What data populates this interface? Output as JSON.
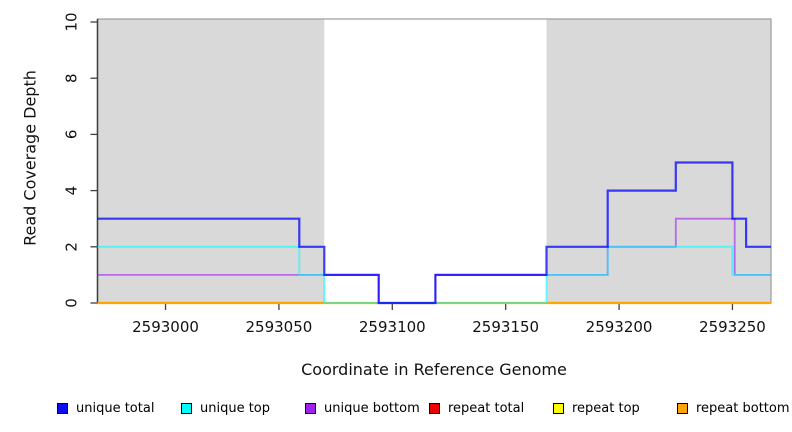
{
  "figure": {
    "title": ""
  },
  "legend": {
    "items": [
      {
        "label": "unique total",
        "color": "#0D0DF2"
      },
      {
        "label": "unique top",
        "color": "#00FFFF"
      },
      {
        "label": "unique bottom",
        "color": "#A020F0"
      },
      {
        "label": "repeat total",
        "color": "#EE0000"
      },
      {
        "label": "repeat top",
        "color": "#FFFF00"
      },
      {
        "label": "repeat bottom",
        "color": "#FFA500"
      }
    ]
  },
  "chart_data": {
    "type": "line",
    "subtype": "step",
    "title": "",
    "xlabel": "Coordinate in Reference Genome",
    "ylabel": "Read Coverage Depth",
    "xlim": [
      2592970,
      2593267
    ],
    "ylim": [
      0,
      10
    ],
    "grid": false,
    "legend_position": "bottom",
    "x_ticks": [
      2593000,
      2593050,
      2593100,
      2593150,
      2593200,
      2593250
    ],
    "y_ticks": [
      0,
      2,
      4,
      6,
      8,
      10
    ],
    "shaded_regions": {
      "color": "#D9D9D9",
      "ranges": [
        [
          2592970,
          2593070
        ],
        [
          2593168,
          2593267
        ]
      ]
    },
    "series": [
      {
        "name": "repeat total",
        "color": "#EE0000",
        "opacity": 1,
        "width": 1.4,
        "steps": [
          [
            2592970,
            0
          ]
        ]
      },
      {
        "name": "repeat top",
        "color": "#FFFF00",
        "opacity": 1,
        "width": 1.4,
        "steps": [
          [
            2592970,
            0
          ]
        ]
      },
      {
        "name": "repeat bottom",
        "color": "#FFA500",
        "opacity": 1,
        "width": 2.2,
        "steps": [
          [
            2592970,
            0
          ]
        ]
      },
      {
        "name": "unique bottom",
        "color": "#A020F0",
        "opacity": 0.6,
        "width": 1.8,
        "steps": [
          [
            2592970,
            1
          ],
          [
            2593094,
            0
          ],
          [
            2593119,
            1
          ],
          [
            2593195,
            2
          ],
          [
            2593225,
            3
          ],
          [
            2593251,
            1
          ]
        ]
      },
      {
        "name": "unique top",
        "color": "#00FFFF",
        "opacity": 0.6,
        "width": 1.8,
        "steps": [
          [
            2592970,
            2
          ],
          [
            2593059,
            1
          ],
          [
            2593070,
            0
          ],
          [
            2593168,
            1
          ],
          [
            2593195,
            2
          ],
          [
            2593250,
            1
          ]
        ]
      },
      {
        "name": "unique total",
        "color": "#0000FF",
        "opacity": 0.75,
        "width": 2.2,
        "steps": [
          [
            2592970,
            3
          ],
          [
            2593059,
            2
          ],
          [
            2593070,
            1
          ],
          [
            2593094,
            0
          ],
          [
            2593119,
            1
          ],
          [
            2593168,
            2
          ],
          [
            2593195,
            4
          ],
          [
            2593225,
            5
          ],
          [
            2593250,
            3
          ],
          [
            2593256,
            2
          ]
        ]
      }
    ]
  }
}
